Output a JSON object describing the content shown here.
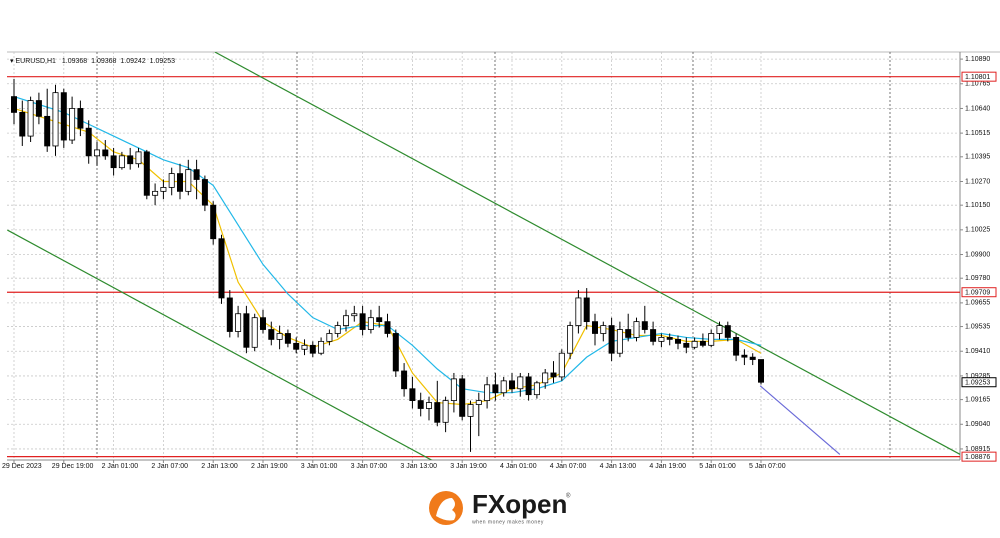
{
  "chart_data": {
    "type": "candlestick",
    "symbol": "EURUSD,H1",
    "categories": [
      "29 Dec 2023",
      null,
      null,
      null,
      null,
      null,
      "29 Dec 19:00",
      null,
      null,
      null,
      null,
      null,
      "2 Jan 01:00",
      null,
      null,
      null,
      null,
      null,
      "2 Jan 07:00",
      null,
      null,
      null,
      null,
      null,
      "2 Jan 13:00",
      null,
      null,
      null,
      null,
      null,
      "2 Jan 19:00",
      null,
      null,
      null,
      null,
      null,
      "3 Jan 01:00",
      null,
      null,
      null,
      null,
      null,
      "3 Jan 07:00",
      null,
      null,
      null,
      null,
      null,
      "3 Jan 13:00",
      null,
      null,
      null,
      null,
      null,
      "3 Jan 19:00",
      null,
      null,
      null,
      null,
      null,
      "4 Jan 01:00",
      null,
      null,
      null,
      null,
      null,
      "4 Jan 07:00",
      null,
      null,
      null,
      null,
      null,
      "4 Jan 13:00",
      null,
      null,
      null,
      null,
      null,
      "4 Jan 19:00",
      null,
      null,
      null,
      null,
      null,
      "5 Jan 01:00",
      null,
      null,
      null,
      null,
      null,
      "5 Jan 07:00"
    ],
    "open": [
      1.107,
      1.1062,
      1.105,
      1.1068,
      1.106,
      1.1045,
      1.1072,
      1.1048,
      1.1064,
      1.1054,
      1.104,
      1.1043,
      1.104,
      1.1034,
      1.104,
      1.1036,
      1.1042,
      1.102,
      1.1022,
      1.1024,
      1.1031,
      1.1022,
      1.1033,
      1.1028,
      1.1015,
      1.0998,
      1.0968,
      1.0951,
      1.096,
      1.0943,
      1.0958,
      1.0952,
      1.0947,
      1.095,
      1.0945,
      1.0942,
      1.0944,
      1.094,
      1.0946,
      1.095,
      1.0954,
      1.0959,
      1.096,
      1.0952,
      1.0958,
      1.0956,
      1.095,
      1.0931,
      1.0922,
      1.0916,
      1.0912,
      1.0915,
      1.0905,
      1.0916,
      1.0927,
      1.0908,
      1.0914,
      1.0916,
      1.0924,
      1.092,
      1.0926,
      1.0922,
      1.0928,
      1.0919,
      1.0925,
      1.093,
      1.0928,
      1.094,
      1.0954,
      1.0968,
      1.0956,
      1.095,
      1.0954,
      1.094,
      1.0952,
      1.0948,
      1.0956,
      1.0952,
      1.0946,
      1.0948,
      1.0947,
      1.0945,
      1.0943,
      1.0946,
      1.0944,
      1.095,
      1.0954,
      1.0948,
      1.0939,
      1.0938,
      1.09368
    ],
    "high": [
      1.1079,
      1.1068,
      1.107,
      1.1072,
      1.1074,
      1.1076,
      1.1074,
      1.107,
      1.1068,
      1.1058,
      1.1047,
      1.1048,
      1.1044,
      1.1042,
      1.1044,
      1.1044,
      1.1043,
      1.1026,
      1.1028,
      1.1034,
      1.1036,
      1.1038,
      1.1038,
      1.103,
      1.1017,
      1.1,
      1.0972,
      1.0964,
      1.0964,
      1.096,
      1.0962,
      1.0956,
      1.0954,
      1.0952,
      1.0948,
      1.0947,
      1.0946,
      1.0948,
      1.0952,
      1.0956,
      1.0962,
      1.0964,
      1.0964,
      1.0962,
      1.0964,
      1.096,
      1.0952,
      1.0935,
      1.0928,
      1.092,
      1.0918,
      1.0926,
      1.0918,
      1.093,
      1.0929,
      1.0916,
      1.092,
      1.0928,
      1.093,
      1.0928,
      1.093,
      1.093,
      1.093,
      1.0926,
      1.0932,
      1.0936,
      1.0942,
      1.0956,
      1.0972,
      1.0973,
      1.096,
      1.0956,
      1.0958,
      1.0956,
      1.096,
      1.0958,
      1.0964,
      1.0956,
      1.095,
      1.095,
      1.0949,
      1.0948,
      1.0948,
      1.095,
      1.0952,
      1.0956,
      1.0956,
      1.095,
      1.0942,
      1.094,
      1.09368
    ],
    "low": [
      1.1056,
      1.1045,
      1.1047,
      1.1056,
      1.1042,
      1.104,
      1.1044,
      1.1046,
      1.105,
      1.1036,
      1.1035,
      1.1038,
      1.103,
      1.1033,
      1.1033,
      1.1034,
      1.1018,
      1.1015,
      1.1018,
      1.102,
      1.1018,
      1.102,
      1.1018,
      1.1012,
      1.0995,
      1.0965,
      1.0948,
      1.0948,
      1.094,
      1.0941,
      1.095,
      1.0944,
      1.0942,
      1.0943,
      1.094,
      1.0939,
      1.0938,
      1.0939,
      1.0944,
      1.0948,
      1.0951,
      1.0956,
      1.0949,
      1.095,
      1.0953,
      1.0948,
      1.0928,
      1.0918,
      1.0912,
      1.0908,
      1.0906,
      1.0903,
      1.09,
      1.091,
      1.0906,
      1.089,
      1.0898,
      1.0912,
      1.0916,
      1.0918,
      1.092,
      1.0918,
      1.0916,
      1.0917,
      1.0922,
      1.0925,
      1.0926,
      1.0937,
      1.095,
      1.0952,
      1.0944,
      1.0946,
      1.0936,
      1.0938,
      1.0946,
      1.0946,
      1.095,
      1.0944,
      1.0943,
      1.0944,
      1.0942,
      1.094,
      1.0942,
      1.0943,
      1.0943,
      1.0947,
      1.0946,
      1.0936,
      1.0934,
      1.0934,
      1.09242
    ],
    "close": [
      1.1062,
      1.105,
      1.1068,
      1.106,
      1.1045,
      1.1072,
      1.1048,
      1.1064,
      1.1054,
      1.104,
      1.1043,
      1.104,
      1.1034,
      1.104,
      1.1036,
      1.1042,
      1.102,
      1.1022,
      1.1024,
      1.1031,
      1.1022,
      1.1033,
      1.1028,
      1.1015,
      1.0998,
      1.0968,
      1.0951,
      1.096,
      1.0943,
      1.0958,
      1.0952,
      1.0947,
      1.095,
      1.0945,
      1.0942,
      1.0944,
      1.094,
      1.0946,
      1.095,
      1.0954,
      1.0959,
      1.096,
      1.0952,
      1.0958,
      1.0956,
      1.095,
      1.0931,
      1.0922,
      1.0916,
      1.0912,
      1.0915,
      1.0905,
      1.0916,
      1.0927,
      1.0908,
      1.0914,
      1.0916,
      1.0924,
      1.092,
      1.0926,
      1.0922,
      1.0928,
      1.0919,
      1.0925,
      1.093,
      1.0928,
      1.094,
      1.0954,
      1.0968,
      1.0956,
      1.095,
      1.0954,
      1.094,
      1.0952,
      1.0948,
      1.0956,
      1.0952,
      1.0946,
      1.0948,
      1.0947,
      1.0945,
      1.0943,
      1.0946,
      1.0944,
      1.095,
      1.0954,
      1.0948,
      1.0939,
      1.0938,
      1.09368,
      1.09253
    ],
    "moving_averages": [
      {
        "color": "#f0c000",
        "x": [
          0,
          3,
          6,
          9,
          12,
          15,
          18,
          21,
          24,
          27,
          30,
          33,
          36,
          39,
          42,
          45,
          48,
          51,
          54,
          57,
          60,
          63,
          66,
          69,
          72,
          75,
          78,
          81,
          84,
          87,
          90
        ],
        "values": [
          1.1064,
          1.106,
          1.1056,
          1.1052,
          1.1042,
          1.1038,
          1.1027,
          1.1027,
          1.1015,
          1.0976,
          1.0956,
          1.0948,
          1.0943,
          1.0947,
          1.0956,
          1.0954,
          1.093,
          1.0915,
          1.0914,
          1.0916,
          1.0922,
          1.0924,
          1.093,
          1.0954,
          1.0952,
          1.0949,
          1.0949,
          1.0946,
          1.0946,
          1.0947,
          1.094
        ]
      },
      {
        "color": "#22b8e8",
        "x": [
          0,
          3,
          6,
          9,
          12,
          15,
          18,
          21,
          24,
          27,
          30,
          33,
          36,
          39,
          42,
          45,
          48,
          51,
          54,
          57,
          60,
          63,
          66,
          69,
          72,
          75,
          78,
          81,
          84,
          87,
          90
        ],
        "values": [
          1.107,
          1.1066,
          1.1062,
          1.1056,
          1.105,
          1.1044,
          1.1038,
          1.1034,
          1.1025,
          1.1005,
          1.0985,
          1.097,
          1.0958,
          1.0952,
          1.0954,
          1.0954,
          1.0944,
          1.0932,
          1.0922,
          1.092,
          1.092,
          1.0922,
          1.0926,
          1.0938,
          1.0946,
          1.0948,
          1.095,
          1.0948,
          1.0947,
          1.0947,
          1.0944
        ]
      }
    ],
    "trendlines": [
      {
        "color": "#2e8b2e",
        "x": [
          24.2,
          114
        ],
        "values": [
          1.10926,
          1.08887
        ]
      },
      {
        "color": "#2e8b2e",
        "x": [
          -0.8,
          51.3
        ],
        "values": [
          1.10024,
          1.08836
        ]
      },
      {
        "color": "#6a6ad8",
        "x": [
          89.9,
          99.5
        ],
        "values": [
          1.09235,
          1.08887
        ]
      }
    ],
    "levels": [
      {
        "value": 1.10801,
        "color": "#e02020"
      },
      {
        "value": 1.09709,
        "color": "#e02020"
      },
      {
        "value": 1.08876,
        "color": "#e02020"
      }
    ],
    "ylim": [
      1.08859,
      1.10926
    ],
    "yticks": [
      {
        "value": 1.1089,
        "label": "1.10890"
      },
      {
        "value": 1.10765,
        "label": "1.10765"
      },
      {
        "value": 1.1064,
        "label": "1.10640"
      },
      {
        "value": 1.10515,
        "label": "1.10515"
      },
      {
        "value": 1.10395,
        "label": "1.10395"
      },
      {
        "value": 1.1027,
        "label": "1.10270"
      },
      {
        "value": 1.1015,
        "label": "1.10150"
      },
      {
        "value": 1.10025,
        "label": "1.10025"
      },
      {
        "value": 1.099,
        "label": "1.09900"
      },
      {
        "value": 1.0978,
        "label": "1.09780"
      },
      {
        "value": 1.09655,
        "label": "1.09655"
      },
      {
        "value": 1.09535,
        "label": "1.09535"
      },
      {
        "value": 1.0941,
        "label": "1.09410"
      },
      {
        "value": 1.09285,
        "label": "1.09285"
      },
      {
        "value": 1.09165,
        "label": "1.09165"
      },
      {
        "value": 1.0904,
        "label": "1.09040"
      },
      {
        "value": 1.08915,
        "label": "1.08915"
      }
    ],
    "grid": true
  },
  "brand": {
    "name": "FXopen",
    "mark": "®",
    "tagline": "when money makes money"
  }
}
